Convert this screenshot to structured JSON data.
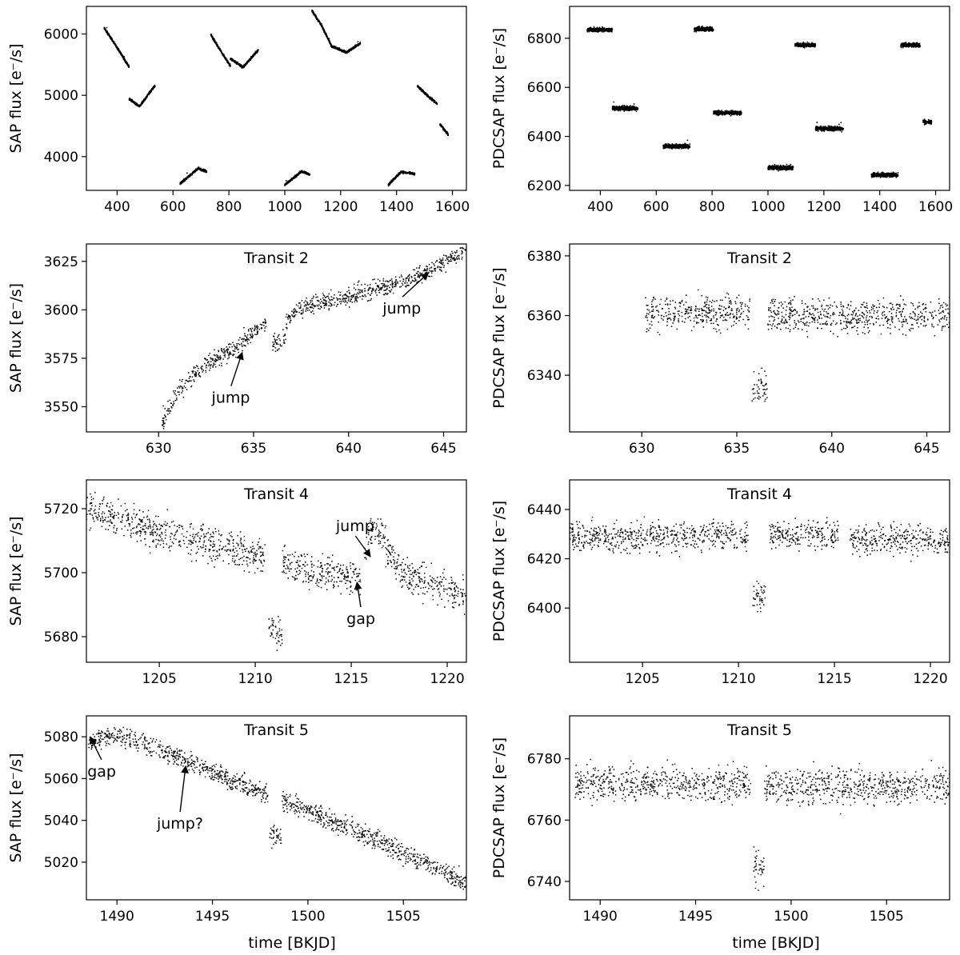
{
  "figure": {
    "xlabel_bottom": "time [BKJD]"
  },
  "chart_data": [
    {
      "id": "sap-full",
      "type": "scatter",
      "title": "",
      "ylabel": "SAP flux [e⁻/s]",
      "xlim": [
        290,
        1650
      ],
      "ylim": [
        3450,
        6450
      ],
      "xticks": [
        400,
        600,
        800,
        1000,
        1200,
        1400,
        1600
      ],
      "yticks": [
        4000,
        5000,
        6000
      ],
      "segments": [
        {
          "x": [
            353,
            443
          ],
          "curve": [
            [
              353,
              6100
            ],
            [
              400,
              5780
            ],
            [
              443,
              5460
            ]
          ]
        },
        {
          "x": [
            443,
            535
          ],
          "curve": [
            [
              443,
              4940
            ],
            [
              480,
              4820
            ],
            [
              535,
              5160
            ]
          ]
        },
        {
          "x": [
            625,
            720
          ],
          "curve": [
            [
              625,
              3560
            ],
            [
              690,
              3810
            ],
            [
              720,
              3760
            ]
          ]
        },
        {
          "x": [
            735,
            805
          ],
          "curve": [
            [
              735,
              5990
            ],
            [
              770,
              5730
            ],
            [
              805,
              5480
            ]
          ]
        },
        {
          "x": [
            805,
            905
          ],
          "curve": [
            [
              805,
              5600
            ],
            [
              850,
              5460
            ],
            [
              905,
              5740
            ]
          ]
        },
        {
          "x": [
            1000,
            1090
          ],
          "curve": [
            [
              1000,
              3540
            ],
            [
              1060,
              3760
            ],
            [
              1090,
              3710
            ]
          ]
        },
        {
          "x": [
            1097,
            1170
          ],
          "curve": [
            [
              1097,
              6380
            ],
            [
              1130,
              6150
            ],
            [
              1170,
              5780
            ]
          ]
        },
        {
          "x": [
            1170,
            1270
          ],
          "curve": [
            [
              1170,
              5800
            ],
            [
              1220,
              5700
            ],
            [
              1270,
              5850
            ]
          ]
        },
        {
          "x": [
            1370,
            1415
          ],
          "curve": [
            [
              1370,
              3540
            ],
            [
              1415,
              3750
            ]
          ]
        },
        {
          "x": [
            1415,
            1465
          ],
          "curve": [
            [
              1415,
              3750
            ],
            [
              1440,
              3740
            ],
            [
              1465,
              3720
            ]
          ]
        },
        {
          "x": [
            1475,
            1545
          ],
          "curve": [
            [
              1475,
              5150
            ],
            [
              1510,
              5000
            ],
            [
              1545,
              4860
            ]
          ]
        },
        {
          "x": [
            1555,
            1585
          ],
          "curve": [
            [
              1555,
              4530
            ],
            [
              1585,
              4360
            ]
          ]
        }
      ],
      "noise": 12
    },
    {
      "id": "pdc-full",
      "type": "scatter",
      "title": "",
      "ylabel": "PDCSAP flux [e⁻/s]",
      "xlim": [
        290,
        1650
      ],
      "ylim": [
        6180,
        6930
      ],
      "xticks": [
        400,
        600,
        800,
        1000,
        1200,
        1400,
        1600
      ],
      "yticks": [
        6200,
        6400,
        6600,
        6800
      ],
      "segments": [
        {
          "x": [
            353,
            443
          ],
          "level": 6835
        },
        {
          "x": [
            443,
            535
          ],
          "level": 6515
        },
        {
          "x": [
            625,
            720
          ],
          "level": 6360
        },
        {
          "x": [
            735,
            805
          ],
          "level": 6838
        },
        {
          "x": [
            805,
            905
          ],
          "level": 6497
        },
        {
          "x": [
            1000,
            1090
          ],
          "level": 6273
        },
        {
          "x": [
            1097,
            1170
          ],
          "level": 6773
        },
        {
          "x": [
            1170,
            1270
          ],
          "level": 6432
        },
        {
          "x": [
            1370,
            1465
          ],
          "level": 6243
        },
        {
          "x": [
            1475,
            1545
          ],
          "level": 6773
        },
        {
          "x": [
            1555,
            1585
          ],
          "level": 6460
        }
      ],
      "noise": 6
    },
    {
      "id": "sap-t2",
      "type": "scatter",
      "title": "Transit 2",
      "ylabel": "SAP flux [e⁻/s]",
      "xlim": [
        626.2,
        646.2
      ],
      "ylim": [
        3537,
        3634
      ],
      "xticks": [
        630,
        635,
        640,
        645
      ],
      "yticks": [
        3550,
        3575,
        3600,
        3625
      ],
      "segments": [
        {
          "x": [
            630.2,
            631.0
          ],
          "curve": [
            [
              630.2,
              3543
            ],
            [
              631.0,
              3557
            ]
          ]
        },
        {
          "x": [
            631.0,
            635.7
          ],
          "curve": [
            [
              631.0,
              3557
            ],
            [
              632.0,
              3568
            ],
            [
              633.0,
              3575
            ],
            [
              634.0,
              3580
            ],
            [
              635.0,
              3588
            ],
            [
              635.7,
              3594
            ]
          ]
        },
        {
          "x": [
            636.0,
            636.7
          ],
          "curve": [
            [
              636.0,
              3582
            ],
            [
              636.7,
              3586
            ]
          ]
        },
        {
          "x": [
            636.7,
            646.2
          ],
          "curve": [
            [
              636.7,
              3594
            ],
            [
              637.5,
              3601
            ],
            [
              640,
              3607
            ],
            [
              643,
              3615
            ],
            [
              646.2,
              3630
            ]
          ]
        }
      ],
      "noise": 3.2,
      "annotations": [
        {
          "text": "jump",
          "text_at": [
            633.8,
            3552
          ],
          "arrow_to": [
            634.4,
            3578
          ]
        },
        {
          "text": "jump",
          "text_at": [
            642.8,
            3598
          ],
          "arrow_to": [
            644.2,
            3619
          ]
        }
      ]
    },
    {
      "id": "pdc-t2",
      "type": "scatter",
      "title": "Transit 2",
      "ylabel": "PDCSAP flux [e⁻/s]",
      "xlim": [
        626.2,
        646.2
      ],
      "ylim": [
        6321,
        6384
      ],
      "xticks": [
        630,
        635,
        640,
        645
      ],
      "yticks": [
        6340,
        6360,
        6380
      ],
      "segments": [
        {
          "x": [
            630.2,
            635.7
          ],
          "level": 6361
        },
        {
          "x": [
            635.8,
            636.6
          ],
          "level": 6336
        },
        {
          "x": [
            636.6,
            646.2
          ],
          "level": 6360
        }
      ],
      "noise": 4
    },
    {
      "id": "sap-t4",
      "type": "scatter",
      "title": "Transit 4",
      "ylabel": "SAP flux [e⁻/s]",
      "xlim": [
        1201.2,
        1221.0
      ],
      "ylim": [
        5672,
        5729
      ],
      "xticks": [
        1205,
        1210,
        1215,
        1220
      ],
      "yticks": [
        5680,
        5700,
        5720
      ],
      "segments": [
        {
          "x": [
            1201.2,
            1210.5
          ],
          "curve": [
            [
              1201.2,
              5720
            ],
            [
              1205,
              5713
            ],
            [
              1210.5,
              5705
            ]
          ]
        },
        {
          "x": [
            1210.7,
            1211.4
          ],
          "curve": [
            [
              1210.7,
              5683
            ],
            [
              1211.4,
              5680
            ]
          ]
        },
        {
          "x": [
            1211.4,
            1215.5
          ],
          "curve": [
            [
              1211.4,
              5703
            ],
            [
              1215.5,
              5698
            ]
          ]
        },
        {
          "x": [
            1215.7,
            1216.8
          ],
          "curve": [
            [
              1215.7,
              5708
            ],
            [
              1216.3,
              5714
            ],
            [
              1216.8,
              5710
            ]
          ]
        },
        {
          "x": [
            1216.8,
            1221.0
          ],
          "curve": [
            [
              1216.8,
              5706
            ],
            [
              1218,
              5699
            ],
            [
              1221.0,
              5693
            ]
          ]
        }
      ],
      "noise": 3.8,
      "annotations": [
        {
          "text": "jump",
          "text_at": [
            1215.2,
            5713
          ],
          "arrow_to": [
            1216.0,
            5705
          ]
        },
        {
          "text": "gap",
          "text_at": [
            1215.5,
            5684
          ],
          "arrow_to": [
            1215.3,
            5697
          ]
        }
      ]
    },
    {
      "id": "pdc-t4",
      "type": "scatter",
      "title": "Transit 4",
      "ylabel": "PDCSAP flux [e⁻/s]",
      "xlim": [
        1201.2,
        1221.0
      ],
      "ylim": [
        6378,
        6452
      ],
      "xticks": [
        1205,
        1210,
        1215,
        1220
      ],
      "yticks": [
        6400,
        6420,
        6440
      ],
      "segments": [
        {
          "x": [
            1201.2,
            1210.5
          ],
          "level": 6429
        },
        {
          "x": [
            1210.7,
            1211.4
          ],
          "level": 6405
        },
        {
          "x": [
            1211.6,
            1215.2
          ],
          "level": 6430
        },
        {
          "x": [
            1215.8,
            1221.0
          ],
          "level": 6428
        }
      ],
      "noise": 4.2
    },
    {
      "id": "sap-t5",
      "type": "scatter",
      "title": "Transit 5",
      "ylabel": "SAP flux [e⁻/s]",
      "xlim": [
        1488.4,
        1508.3
      ],
      "ylim": [
        5002,
        5090
      ],
      "xticks": [
        1490,
        1495,
        1500,
        1505
      ],
      "yticks": [
        5020,
        5040,
        5060,
        5080
      ],
      "segments": [
        {
          "x": [
            1488.5,
            1489.0
          ],
          "curve": [
            [
              1488.5,
              5076
            ],
            [
              1489.0,
              5078
            ]
          ]
        },
        {
          "x": [
            1489.0,
            1497.9
          ],
          "curve": [
            [
              1489.0,
              5080
            ],
            [
              1490,
              5081
            ],
            [
              1493,
              5071
            ],
            [
              1497.9,
              5052
            ]
          ]
        },
        {
          "x": [
            1498.0,
            1498.6
          ],
          "curve": [
            [
              1498.0,
              5033
            ],
            [
              1498.6,
              5032
            ]
          ]
        },
        {
          "x": [
            1498.6,
            1508.3
          ],
          "curve": [
            [
              1498.6,
              5050
            ],
            [
              1503,
              5033
            ],
            [
              1508.3,
              5010
            ]
          ]
        }
      ],
      "noise": 3.2,
      "annotations": [
        {
          "text": "gap",
          "text_at": [
            1489.2,
            5061
          ],
          "arrow_to": [
            1488.6,
            5080
          ]
        },
        {
          "text": "jump?",
          "text_at": [
            1493.3,
            5036
          ],
          "arrow_to": [
            1493.6,
            5066
          ]
        }
      ]
    },
    {
      "id": "pdc-t5",
      "type": "scatter",
      "title": "Transit 5",
      "ylabel": "PDCSAP flux [e⁻/s]",
      "xlim": [
        1488.4,
        1508.3
      ],
      "ylim": [
        6734,
        6794
      ],
      "xticks": [
        1490,
        1495,
        1500,
        1505
      ],
      "yticks": [
        6740,
        6760,
        6780
      ],
      "segments": [
        {
          "x": [
            1488.6,
            1497.9
          ],
          "level": 6772
        },
        {
          "x": [
            1498.0,
            1498.6
          ],
          "level": 6745
        },
        {
          "x": [
            1498.6,
            1508.3
          ],
          "level": 6771
        }
      ],
      "noise": 4
    }
  ]
}
